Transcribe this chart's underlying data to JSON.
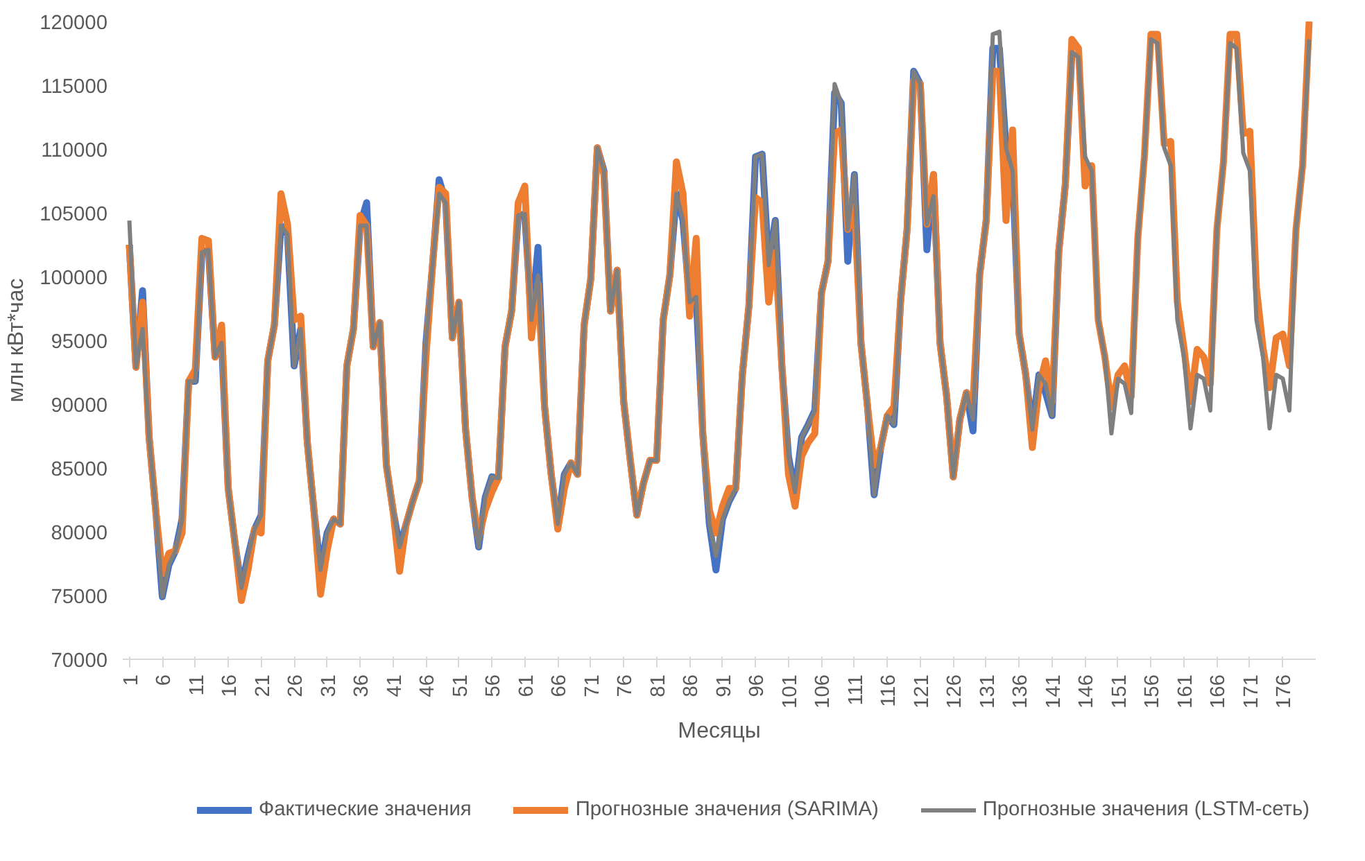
{
  "chart_data": {
    "type": "line",
    "xlabel": "Месяцы",
    "ylabel": "млн кВт*час",
    "x": [
      1,
      2,
      3,
      4,
      5,
      6,
      7,
      8,
      9,
      10,
      11,
      12,
      13,
      14,
      15,
      16,
      17,
      18,
      19,
      20,
      21,
      22,
      23,
      24,
      25,
      26,
      27,
      28,
      29,
      30,
      31,
      32,
      33,
      34,
      35,
      36,
      37,
      38,
      39,
      40,
      41,
      42,
      43,
      44,
      45,
      46,
      47,
      48,
      49,
      50,
      51,
      52,
      53,
      54,
      55,
      56,
      57,
      58,
      59,
      60,
      61,
      62,
      63,
      64,
      65,
      66,
      67,
      68,
      69,
      70,
      71,
      72,
      73,
      74,
      75,
      76,
      77,
      78,
      79,
      80,
      81,
      82,
      83,
      84,
      85,
      86,
      87,
      88,
      89,
      90,
      91,
      92,
      93,
      94,
      95,
      96,
      97,
      98,
      99,
      100,
      101,
      102,
      103,
      104,
      105,
      106,
      107,
      108,
      109,
      110,
      111,
      112,
      113,
      114,
      115,
      116,
      117,
      118,
      119,
      120,
      121,
      122,
      123,
      124,
      125,
      126,
      127,
      128,
      129,
      130,
      131,
      132,
      133,
      134,
      135,
      136,
      137,
      138,
      139,
      140,
      141,
      142,
      143,
      144,
      145,
      146,
      147,
      148,
      149,
      150,
      151,
      152,
      153,
      154,
      155,
      156,
      157,
      158,
      159,
      160,
      161,
      162,
      163,
      164,
      165,
      166,
      167,
      168,
      169,
      170,
      171,
      172,
      173,
      174,
      175,
      176,
      177,
      178,
      179,
      180
    ],
    "xlim": [
      0,
      181
    ],
    "xticks": [
      1,
      6,
      11,
      16,
      21,
      26,
      31,
      36,
      41,
      46,
      51,
      56,
      61,
      66,
      71,
      76,
      81,
      86,
      91,
      96,
      101,
      106,
      111,
      116,
      121,
      126,
      131,
      136,
      141,
      146,
      151,
      156,
      161,
      166,
      171,
      176
    ],
    "ylim": [
      70000,
      120000
    ],
    "yticks": [
      70000,
      75000,
      80000,
      85000,
      90000,
      95000,
      100000,
      105000,
      110000,
      115000,
      120000
    ],
    "grid": false,
    "legend": "bottom",
    "marker": "none",
    "line_style": "solid",
    "series": [
      {
        "name": "Фактические значения",
        "color": "#4472c4",
        "values": [
          102500,
          92900,
          98900,
          87400,
          81700,
          74900,
          77400,
          78500,
          81000,
          91800,
          91800,
          101900,
          102100,
          93700,
          94800,
          83400,
          79200,
          75600,
          78100,
          80200,
          81300,
          93400,
          96200,
          104000,
          103300,
          93000,
          95900,
          87000,
          81700,
          77000,
          79900,
          81000,
          80600,
          93000,
          95900,
          104000,
          105800,
          94500,
          96400,
          85200,
          81700,
          78800,
          80600,
          82400,
          84000,
          94800,
          100900,
          107600,
          105800,
          95200,
          98000,
          88100,
          82700,
          78800,
          82700,
          84300,
          84200,
          94500,
          97300,
          104800,
          104900,
          96600,
          102300,
          89800,
          84500,
          80600,
          84500,
          85400,
          84500,
          96200,
          99800,
          110100,
          108300,
          97300,
          100500,
          90200,
          85600,
          81300,
          83800,
          85600,
          85600,
          96600,
          100100,
          106500,
          104400,
          98000,
          98400,
          87700,
          80600,
          77000,
          81000,
          82400,
          83400,
          92300,
          97700,
          109400,
          109600,
          100900,
          104400,
          93000,
          85900,
          83100,
          87400,
          88400,
          89500,
          98700,
          101200,
          114400,
          113600,
          101200,
          108000,
          94800,
          89800,
          82900,
          86600,
          89100,
          88400,
          98000,
          103700,
          116100,
          115100,
          102100,
          108000,
          94800,
          90600,
          84300,
          88800,
          90900,
          87900,
          100100,
          104400,
          117900,
          117900,
          110100,
          108300,
          95500,
          92300,
          88000,
          92300,
          90900,
          89100,
          101900,
          107200,
          117600,
          null,
          null,
          null,
          null,
          null,
          null,
          null,
          null,
          null,
          null,
          null,
          null,
          null,
          null,
          null,
          null,
          null,
          null,
          null,
          null,
          null,
          null,
          null,
          null,
          null,
          null,
          null,
          null,
          null,
          null,
          null,
          null,
          null,
          null,
          null,
          null
        ]
      },
      {
        "name": "Прогнозные значения (SARIMA)",
        "color": "#ed7d31",
        "values": [
          102500,
          92900,
          98000,
          87400,
          81700,
          76700,
          78300,
          78500,
          79900,
          91800,
          92700,
          103000,
          102800,
          93700,
          96200,
          83400,
          79200,
          74600,
          77000,
          80200,
          79900,
          93400,
          96200,
          106500,
          104100,
          96600,
          96900,
          87000,
          81700,
          75100,
          78500,
          81000,
          80600,
          93000,
          95900,
          104800,
          104000,
          94500,
          96400,
          85200,
          81700,
          76900,
          80600,
          82400,
          84000,
          93700,
          100900,
          107000,
          106500,
          95200,
          98000,
          88100,
          82700,
          79500,
          81700,
          83100,
          84200,
          94500,
          97300,
          105800,
          107100,
          95200,
          99400,
          89800,
          84500,
          80200,
          83400,
          85400,
          84500,
          96200,
          99800,
          110100,
          108000,
          97300,
          100500,
          90200,
          85600,
          81300,
          83800,
          85600,
          85600,
          96600,
          100100,
          109000,
          106500,
          96900,
          103000,
          87700,
          81700,
          79900,
          82000,
          83400,
          83400,
          92300,
          97700,
          106200,
          105800,
          98000,
          101900,
          93000,
          84500,
          82000,
          85900,
          87000,
          87700,
          98700,
          101200,
          111200,
          111500,
          103700,
          105500,
          94800,
          89800,
          85200,
          86600,
          89100,
          89800,
          98000,
          103700,
          115400,
          115100,
          104100,
          108000,
          94800,
          90600,
          84300,
          88800,
          90900,
          90200,
          100100,
          104400,
          116100,
          116100,
          104400,
          111500,
          95500,
          92300,
          86600,
          91300,
          93400,
          90200,
          101900,
          107200,
          118600,
          117900,
          107100,
          108700,
          96600,
          93700,
          89800,
          92300,
          93000,
          90600,
          103000,
          109400,
          119000,
          119000,
          110400,
          110600,
          98000,
          94400,
          90200,
          94300,
          93700,
          91600,
          103700,
          109000,
          119000,
          119000,
          111200,
          111400,
          99100,
          94400,
          91300,
          95200,
          95500,
          93000,
          103700,
          108700,
          120000
        ]
      },
      {
        "name": "Прогнозные значения (LSTM-сеть)",
        "color": "#7f7f7f",
        "values": [
          104400,
          92900,
          95900,
          87400,
          81700,
          74900,
          77400,
          78500,
          81000,
          91800,
          91800,
          101900,
          102100,
          93700,
          94800,
          83400,
          79200,
          75600,
          78100,
          80200,
          81300,
          93400,
          96200,
          104000,
          103300,
          93000,
          95900,
          87000,
          81700,
          77000,
          79900,
          81000,
          80600,
          93000,
          95900,
          104000,
          104000,
          94500,
          96400,
          85200,
          81700,
          78800,
          80600,
          82400,
          84000,
          94800,
          100900,
          106500,
          105800,
          95200,
          98000,
          88100,
          82700,
          78800,
          82700,
          84300,
          84200,
          94500,
          97300,
          104800,
          104900,
          96600,
          100100,
          89800,
          84500,
          80600,
          84500,
          85400,
          84500,
          96200,
          99800,
          110100,
          108300,
          97300,
          100500,
          90200,
          85600,
          81300,
          83800,
          85600,
          85600,
          96600,
          100100,
          106500,
          104400,
          98000,
          98400,
          87700,
          80600,
          78100,
          81000,
          82400,
          83400,
          92300,
          97700,
          109400,
          109600,
          100900,
          104400,
          93000,
          85900,
          83100,
          87400,
          88400,
          89500,
          98700,
          101200,
          115100,
          113600,
          103700,
          108000,
          94800,
          89800,
          82900,
          86600,
          89100,
          88400,
          98000,
          103700,
          116100,
          115100,
          104100,
          106300,
          94800,
          90600,
          84300,
          88800,
          90900,
          88800,
          100100,
          104400,
          119000,
          119200,
          110100,
          108300,
          95500,
          92300,
          88000,
          92300,
          91600,
          89100,
          101900,
          107200,
          117600,
          117200,
          109400,
          108300,
          96600,
          93700,
          87700,
          92000,
          91600,
          89300,
          103000,
          109400,
          118600,
          118300,
          110100,
          108700,
          96600,
          93700,
          88100,
          92300,
          92000,
          89500,
          103700,
          109000,
          118300,
          117900,
          109700,
          108300,
          96600,
          93700,
          88100,
          92300,
          92000,
          89500,
          103700,
          108700,
          118600
        ]
      }
    ]
  }
}
